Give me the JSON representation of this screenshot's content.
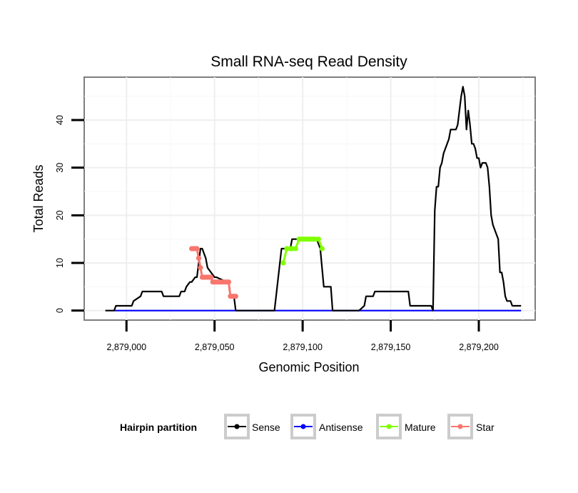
{
  "chart_data": {
    "type": "line",
    "title": "Small RNA-seq Read Density",
    "xlabel": "Genomic Position",
    "ylabel": "Total Reads",
    "xlim": [
      2878976,
      2879232
    ],
    "ylim": [
      -2,
      49
    ],
    "x_ticks": [
      2879000,
      2879050,
      2879100,
      2879150,
      2879200
    ],
    "x_tick_labels": [
      "2,879,000",
      "2,879,050",
      "2,879,100",
      "2,879,150",
      "2,879,200"
    ],
    "y_ticks": [
      0,
      10,
      20,
      30,
      40
    ],
    "y_tick_labels": [
      "0",
      "10",
      "20",
      "30",
      "40"
    ],
    "grid": true,
    "legend": {
      "title": "Hairpin partition",
      "position": "bottom",
      "entries": [
        {
          "name": "Sense",
          "color": "#000000"
        },
        {
          "name": "Antisense",
          "color": "#0000ff"
        },
        {
          "name": "Mature",
          "color": "#80ff00"
        },
        {
          "name": "Star",
          "color": "#f8766d"
        }
      ]
    },
    "series": [
      {
        "name": "Sense",
        "color": "#000000",
        "x": [
          2878988,
          2878993,
          2878994,
          2879003,
          2879004,
          2879008,
          2879009,
          2879020,
          2879021,
          2879022,
          2879024,
          2879025,
          2879030,
          2879031,
          2879033,
          2879034,
          2879036,
          2879037,
          2879039,
          2879040,
          2879042,
          2879043,
          2879045,
          2879046,
          2879050,
          2879051,
          2879057,
          2879058,
          2879059,
          2879061,
          2879062,
          2879082,
          2879084,
          2879088,
          2879093,
          2879094,
          2879098,
          2879108,
          2879110,
          2879112,
          2879116,
          2879117,
          2879122,
          2879132,
          2879135,
          2879136,
          2879140,
          2879141,
          2879150,
          2879151,
          2879160,
          2879161,
          2879167,
          2879168,
          2879170,
          2879173,
          2879174,
          2879175,
          2879176,
          2879177,
          2879178,
          2879179,
          2879180,
          2879181,
          2879182,
          2879183,
          2879184,
          2879185,
          2879186,
          2879187,
          2879188,
          2879189,
          2879190,
          2879191,
          2879192,
          2879193,
          2879194,
          2879195,
          2879196,
          2879197,
          2879198,
          2879199,
          2879200,
          2879201,
          2879202,
          2879203,
          2879204,
          2879205,
          2879206,
          2879207,
          2879208,
          2879209,
          2879210,
          2879211,
          2879212,
          2879213,
          2879214,
          2879215,
          2879216,
          2879217,
          2879218,
          2879219,
          2879220,
          2879221,
          2879222,
          2879223,
          2879224
        ],
        "y": [
          0,
          0,
          1,
          1,
          2,
          3,
          4,
          4,
          3,
          3,
          3,
          3,
          3,
          4,
          4,
          5,
          6,
          6,
          7,
          7,
          13,
          13,
          11,
          9,
          7,
          7,
          6,
          6,
          3,
          3,
          0,
          0,
          0,
          13,
          13,
          15,
          15,
          15,
          13,
          5,
          5,
          0,
          0,
          0,
          1,
          3,
          3,
          4,
          4,
          4,
          4,
          1,
          1,
          1,
          1,
          1,
          0,
          21,
          26,
          26,
          30,
          31,
          33,
          34,
          35,
          36,
          38,
          38,
          38,
          38,
          39,
          42,
          45,
          47,
          45,
          38,
          42,
          39,
          35,
          35,
          34,
          32,
          32,
          30,
          31,
          31,
          31,
          30,
          26,
          20,
          18,
          17,
          16,
          15,
          8,
          8,
          6,
          3,
          2,
          2,
          2,
          1,
          1,
          1,
          1,
          1,
          1
        ],
        "markers": false
      },
      {
        "name": "Antisense",
        "color": "#0000ff",
        "x": [
          2878993,
          2879224
        ],
        "y": [
          0,
          0
        ],
        "markers": false
      },
      {
        "name": "Mature",
        "color": "#80ff00",
        "x": [
          2879089,
          2879091,
          2879093,
          2879094,
          2879096,
          2879098,
          2879099,
          2879100,
          2879101,
          2879102,
          2879103,
          2879104,
          2879105,
          2879106,
          2879107,
          2879109,
          2879111
        ],
        "y": [
          10,
          13,
          13,
          13,
          13,
          15,
          15,
          15,
          15,
          15,
          15,
          15,
          15,
          15,
          15,
          15,
          13
        ],
        "markers": true
      },
      {
        "name": "Star",
        "color": "#f8766d",
        "x": [
          2879037,
          2879038,
          2879039,
          2879040,
          2879041,
          2879042,
          2879043,
          2879044,
          2879045,
          2879046,
          2879047,
          2879048,
          2879049,
          2879050,
          2879051,
          2879052,
          2879053,
          2879054,
          2879055,
          2879056,
          2879057,
          2879058,
          2879059,
          2879060,
          2879061,
          2879062
        ],
        "y": [
          13,
          13,
          13,
          13,
          11,
          9,
          7,
          7,
          7,
          7,
          7,
          7,
          6,
          6,
          6,
          6,
          6,
          6,
          6,
          6,
          6,
          6,
          3,
          3,
          3,
          3
        ],
        "markers": true
      }
    ]
  }
}
